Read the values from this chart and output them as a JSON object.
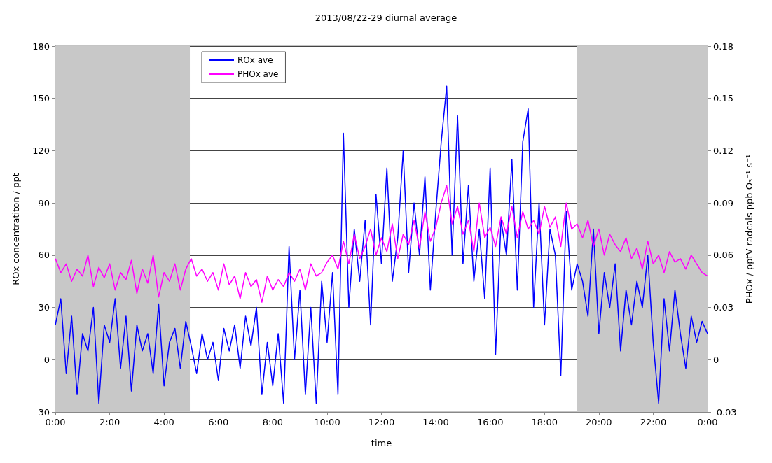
{
  "chart_data": {
    "type": "line",
    "title": "2013/08/22-29 diurnal average",
    "xlabel": "time",
    "ylabel": "ROx concentratiton / ppt",
    "y2label": "PHOx / pptV radcals ppb O₃⁻¹ s⁻¹",
    "x": [
      0,
      0.2,
      0.4,
      0.6,
      0.8,
      1,
      1.2,
      1.4,
      1.6,
      1.8,
      2,
      2.2,
      2.4,
      2.6,
      2.8,
      3,
      3.2,
      3.4,
      3.6,
      3.8,
      4,
      4.2,
      4.4,
      4.6,
      4.8,
      5,
      5.2,
      5.4,
      5.6,
      5.8,
      6,
      6.2,
      6.4,
      6.6,
      6.8,
      7,
      7.2,
      7.4,
      7.6,
      7.8,
      8,
      8.2,
      8.4,
      8.6,
      8.8,
      9,
      9.2,
      9.4,
      9.6,
      9.8,
      10,
      10.2,
      10.4,
      10.6,
      10.8,
      11,
      11.2,
      11.4,
      11.6,
      11.8,
      12,
      12.2,
      12.4,
      12.6,
      12.8,
      13,
      13.2,
      13.4,
      13.6,
      13.8,
      14,
      14.2,
      14.4,
      14.6,
      14.8,
      15,
      15.2,
      15.4,
      15.6,
      15.8,
      16,
      16.2,
      16.4,
      16.6,
      16.8,
      17,
      17.2,
      17.4,
      17.6,
      17.8,
      18,
      18.2,
      18.4,
      18.6,
      18.8,
      19,
      19.2,
      19.4,
      19.6,
      19.8,
      20,
      20.2,
      20.4,
      20.6,
      20.8,
      21,
      21.2,
      21.4,
      21.6,
      21.8,
      22,
      22.2,
      22.4,
      22.6,
      22.8,
      23,
      23.2,
      23.4,
      23.6,
      23.8,
      24
    ],
    "series": [
      {
        "name": "ROx ave",
        "color": "#0000ff",
        "values": [
          20,
          35,
          -8,
          25,
          -20,
          15,
          5,
          30,
          -25,
          20,
          10,
          35,
          -5,
          25,
          -18,
          20,
          5,
          15,
          -8,
          32,
          -15,
          10,
          18,
          -5,
          22,
          8,
          -8,
          15,
          0,
          10,
          -12,
          18,
          5,
          20,
          -5,
          25,
          8,
          30,
          -20,
          10,
          -15,
          15,
          -25,
          65,
          0,
          40,
          -20,
          30,
          -25,
          45,
          10,
          50,
          -20,
          130,
          30,
          75,
          45,
          80,
          20,
          95,
          55,
          110,
          45,
          70,
          120,
          50,
          90,
          60,
          105,
          40,
          85,
          125,
          157,
          60,
          140,
          55,
          100,
          45,
          75,
          35,
          110,
          3,
          80,
          60,
          115,
          40,
          125,
          144,
          30,
          90,
          20,
          75,
          60,
          -9,
          85,
          40,
          55,
          45,
          25,
          75,
          15,
          50,
          30,
          55,
          5,
          40,
          20,
          45,
          30,
          60,
          10,
          -25,
          35,
          5,
          40,
          15,
          -5,
          25,
          10,
          22,
          15
        ]
      },
      {
        "name": "PHOx ave",
        "color": "#ff00ff",
        "axis": "y2",
        "values": [
          0.058,
          0.05,
          0.055,
          0.045,
          0.052,
          0.048,
          0.06,
          0.042,
          0.053,
          0.047,
          0.055,
          0.04,
          0.05,
          0.046,
          0.057,
          0.038,
          0.052,
          0.044,
          0.06,
          0.036,
          0.05,
          0.045,
          0.055,
          0.04,
          0.052,
          0.058,
          0.048,
          0.052,
          0.045,
          0.05,
          0.04,
          0.055,
          0.043,
          0.048,
          0.035,
          0.05,
          0.042,
          0.046,
          0.033,
          0.048,
          0.04,
          0.046,
          0.042,
          0.05,
          0.045,
          0.052,
          0.04,
          0.055,
          0.048,
          0.05,
          0.056,
          0.06,
          0.052,
          0.068,
          0.055,
          0.072,
          0.058,
          0.065,
          0.075,
          0.06,
          0.07,
          0.062,
          0.078,
          0.058,
          0.072,
          0.066,
          0.08,
          0.064,
          0.085,
          0.068,
          0.076,
          0.09,
          0.1,
          0.078,
          0.088,
          0.072,
          0.08,
          0.062,
          0.09,
          0.07,
          0.076,
          0.065,
          0.082,
          0.072,
          0.088,
          0.07,
          0.085,
          0.075,
          0.08,
          0.072,
          0.088,
          0.076,
          0.082,
          0.065,
          0.09,
          0.075,
          0.078,
          0.07,
          0.08,
          0.065,
          0.075,
          0.06,
          0.072,
          0.066,
          0.062,
          0.07,
          0.058,
          0.064,
          0.052,
          0.068,
          0.055,
          0.06,
          0.05,
          0.062,
          0.056,
          0.058,
          0.052,
          0.06,
          0.055,
          0.05,
          0.048
        ]
      }
    ],
    "xlim": [
      0,
      24
    ],
    "xticks": [
      {
        "value": 0,
        "label": "0:00"
      },
      {
        "value": 2,
        "label": "2:00"
      },
      {
        "value": 4,
        "label": "4:00"
      },
      {
        "value": 6,
        "label": "6:00"
      },
      {
        "value": 8,
        "label": "8:00"
      },
      {
        "value": 10,
        "label": "10:00"
      },
      {
        "value": 12,
        "label": "12:00"
      },
      {
        "value": 14,
        "label": "14:00"
      },
      {
        "value": 16,
        "label": "16:00"
      },
      {
        "value": 18,
        "label": "18:00"
      },
      {
        "value": 20,
        "label": "20:00"
      },
      {
        "value": 22,
        "label": "22:00"
      },
      {
        "value": 24,
        "label": "0:00"
      }
    ],
    "ylim": [
      -30,
      180
    ],
    "yticks": [
      -30,
      0,
      30,
      60,
      90,
      120,
      150,
      180
    ],
    "y2lim": [
      -0.03,
      0.18
    ],
    "y2ticks": [
      -0.03,
      0,
      0.03,
      0.06,
      0.09,
      0.12,
      0.15,
      0.18
    ],
    "bands": [
      {
        "axis": "x",
        "from": 0,
        "to": 4.95,
        "color": "#c8c8c8"
      },
      {
        "axis": "x",
        "from": 19.2,
        "to": 24,
        "color": "#c8c8c8"
      }
    ],
    "grid": "y",
    "legend": "top left",
    "marker": "none",
    "line_style": "solid"
  }
}
